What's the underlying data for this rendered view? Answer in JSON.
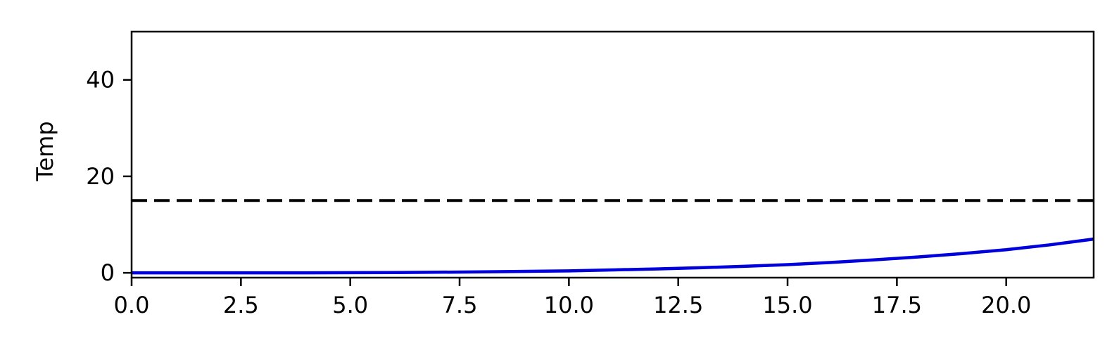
{
  "chart_data": {
    "type": "line",
    "title": "",
    "xlabel": "",
    "ylabel": "Temp",
    "xlim": [
      0,
      22
    ],
    "ylim": [
      -1,
      50
    ],
    "xticks": [
      0.0,
      2.5,
      5.0,
      7.5,
      10.0,
      12.5,
      15.0,
      17.5,
      20.0
    ],
    "xtick_labels": [
      "0.0",
      "2.5",
      "5.0",
      "7.5",
      "10.0",
      "12.5",
      "15.0",
      "17.5",
      "20.0"
    ],
    "yticks": [
      0,
      20,
      40
    ],
    "ytick_labels": [
      "0",
      "20",
      "40"
    ],
    "grid": false,
    "legend": "none",
    "series": [
      {
        "color": "#0000dd",
        "style": "solid",
        "x": [
          0,
          2,
          4,
          6,
          8,
          10,
          11,
          12,
          13,
          14,
          15,
          16,
          17,
          18,
          19,
          20,
          21,
          22
        ],
        "y": [
          0,
          0,
          0,
          0.05,
          0.2,
          0.4,
          0.6,
          0.8,
          1.05,
          1.35,
          1.7,
          2.15,
          2.7,
          3.3,
          4.0,
          4.8,
          5.8,
          7.0
        ]
      },
      {
        "color": "#000000",
        "style": "dashed",
        "x": [
          0,
          22
        ],
        "y": [
          15,
          15
        ]
      }
    ]
  }
}
